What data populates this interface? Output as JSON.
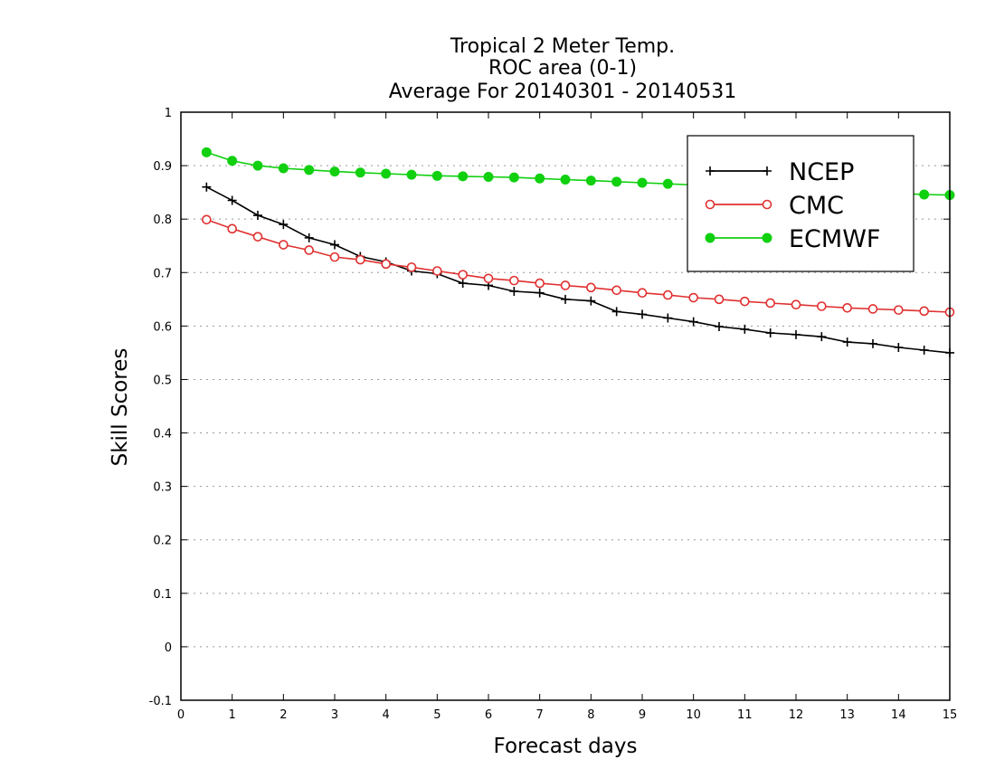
{
  "chart_data": {
    "type": "line",
    "title_lines": [
      "Tropical 2 Meter Temp.",
      "ROC area (0-1)",
      "Average For 20140301 - 20140531"
    ],
    "xlabel": "Forecast days",
    "ylabel": "Skill Scores",
    "xlim": [
      0,
      15
    ],
    "ylim": [
      -0.1,
      1
    ],
    "x_ticks": [
      0,
      1,
      2,
      3,
      4,
      5,
      6,
      7,
      8,
      9,
      10,
      11,
      12,
      13,
      14,
      15
    ],
    "y_ticks": [
      -0.1,
      0,
      0.1,
      0.2,
      0.3,
      0.4,
      0.5,
      0.6,
      0.7,
      0.8,
      0.9,
      1
    ],
    "y_tick_labels": [
      "-0.1",
      "0",
      "0.1",
      "0.2",
      "0.3",
      "0.4",
      "0.5",
      "0.6",
      "0.7",
      "0.8",
      "0.9",
      "1"
    ],
    "grid": "horizontal-dotted",
    "legend_position": "top-right",
    "x": [
      0.5,
      1,
      1.5,
      2,
      2.5,
      3,
      3.5,
      4,
      4.5,
      5,
      5.5,
      6,
      6.5,
      7,
      7.5,
      8,
      8.5,
      9,
      9.5,
      10,
      10.5,
      11,
      11.5,
      12,
      12.5,
      13,
      13.5,
      14,
      14.5,
      15
    ],
    "series": [
      {
        "name": "NCEP",
        "color": "#000000",
        "marker": "plus",
        "values": [
          0.86,
          0.835,
          0.807,
          0.79,
          0.765,
          0.752,
          0.73,
          0.72,
          0.703,
          0.698,
          0.68,
          0.676,
          0.665,
          0.662,
          0.65,
          0.647,
          0.627,
          0.622,
          0.615,
          0.608,
          0.599,
          0.594,
          0.587,
          0.584,
          0.58,
          0.57,
          0.567,
          0.56,
          0.555,
          0.55
        ]
      },
      {
        "name": "CMC",
        "color": "#e03030",
        "marker": "open-circle",
        "values": [
          0.799,
          0.782,
          0.767,
          0.752,
          0.742,
          0.729,
          0.724,
          0.716,
          0.71,
          0.703,
          0.696,
          0.689,
          0.685,
          0.68,
          0.676,
          0.672,
          0.667,
          0.662,
          0.658,
          0.653,
          0.65,
          0.646,
          0.643,
          0.64,
          0.637,
          0.634,
          0.632,
          0.63,
          0.628,
          0.626
        ]
      },
      {
        "name": "ECMWF",
        "color": "#10d010",
        "marker": "filled-circle",
        "values": [
          0.925,
          0.909,
          0.9,
          0.895,
          0.892,
          0.889,
          0.887,
          0.885,
          0.883,
          0.881,
          0.88,
          0.879,
          0.878,
          0.876,
          0.874,
          0.872,
          0.87,
          0.868,
          0.866,
          0.864,
          0.862,
          0.86,
          0.858,
          0.856,
          0.854,
          0.852,
          0.85,
          0.848,
          0.846,
          0.845
        ]
      }
    ]
  }
}
